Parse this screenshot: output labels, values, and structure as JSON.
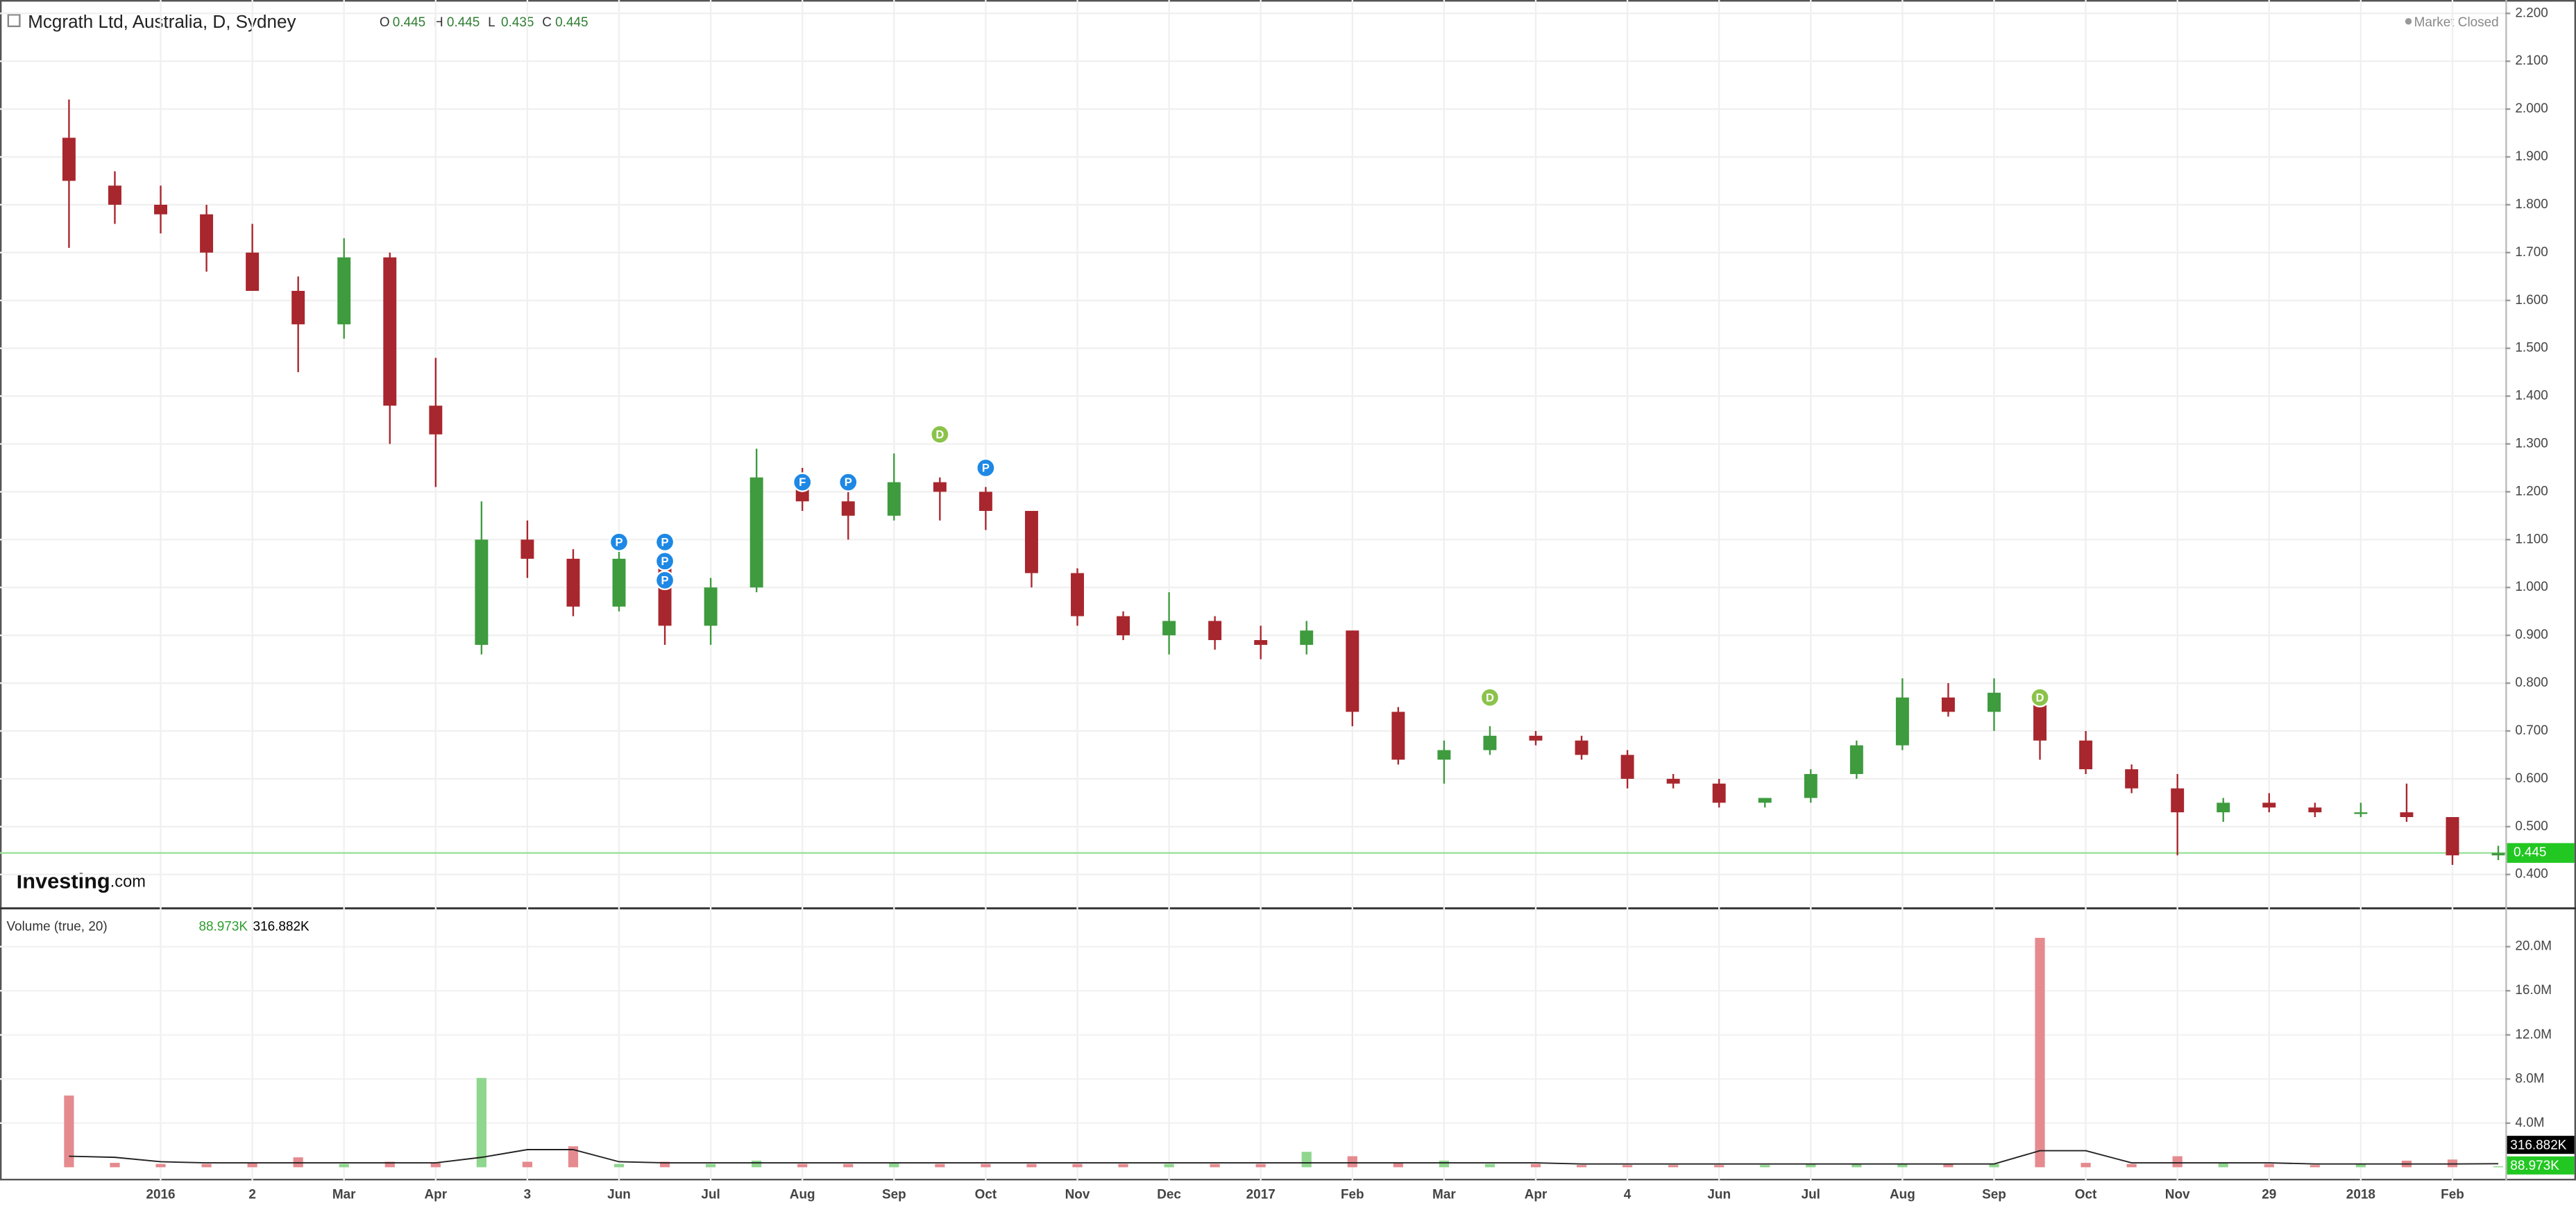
{
  "header": {
    "title": "Mcgrath Ltd, Australia, D, Sydney",
    "ohlc": [
      {
        "key": "O",
        "value": 0.445
      },
      {
        "key": "H",
        "value": 0.445
      },
      {
        "key": "L",
        "value": 0.435
      },
      {
        "key": "C",
        "value": 0.445
      }
    ],
    "market_status": "Market Closed",
    "logo": "Investing",
    "logo_suffix": ".com"
  },
  "chart_data": [
    {
      "type": "candlestick",
      "categories": [
        null,
        null,
        "2016",
        null,
        "2",
        null,
        "Mar",
        null,
        "Apr",
        null,
        "3",
        null,
        "Jun",
        null,
        "Jul",
        null,
        "Aug",
        null,
        "Sep",
        null,
        "Oct",
        null,
        "Nov",
        null,
        "Dec",
        null,
        "2017",
        null,
        "Feb",
        null,
        "Mar",
        null,
        "Apr",
        null,
        "4",
        null,
        "Jun",
        null,
        "Jul",
        null,
        "Aug",
        null,
        "Sep",
        null,
        "Oct",
        null,
        "Nov",
        null,
        "29",
        null,
        "2018",
        null,
        "Feb",
        null
      ],
      "open": [
        1.94,
        1.84,
        1.8,
        1.78,
        1.7,
        1.62,
        1.55,
        1.69,
        1.38,
        0.88,
        1.1,
        1.06,
        0.96,
        1.06,
        0.92,
        1.0,
        1.23,
        1.18,
        1.15,
        1.22,
        1.2,
        1.16,
        1.03,
        0.94,
        0.9,
        0.93,
        0.89,
        0.88,
        0.91,
        0.74,
        0.64,
        0.66,
        0.69,
        0.68,
        0.65,
        0.6,
        0.59,
        0.55,
        0.56,
        0.61,
        0.67,
        0.77,
        0.74,
        0.78,
        0.68,
        0.62,
        0.58,
        0.53,
        0.55,
        0.54,
        0.53,
        0.53,
        0.52,
        0.44
      ],
      "high": [
        2.02,
        1.87,
        1.84,
        1.8,
        1.76,
        1.65,
        1.73,
        1.7,
        1.48,
        1.18,
        1.14,
        1.08,
        1.09,
        1.07,
        1.02,
        1.29,
        1.25,
        1.2,
        1.28,
        1.23,
        1.21,
        1.16,
        1.04,
        0.95,
        0.99,
        0.94,
        0.92,
        0.93,
        0.91,
        0.75,
        0.68,
        0.71,
        0.7,
        0.69,
        0.66,
        0.61,
        0.6,
        0.56,
        0.62,
        0.68,
        0.81,
        0.8,
        0.81,
        0.78,
        0.7,
        0.63,
        0.61,
        0.56,
        0.57,
        0.55,
        0.55,
        0.59,
        0.52,
        0.46
      ],
      "low": [
        1.71,
        1.76,
        1.74,
        1.66,
        1.62,
        1.45,
        1.52,
        1.3,
        1.21,
        0.86,
        1.02,
        0.94,
        0.95,
        0.88,
        0.88,
        0.99,
        1.16,
        1.1,
        1.14,
        1.14,
        1.12,
        1.0,
        0.92,
        0.89,
        0.86,
        0.87,
        0.85,
        0.86,
        0.71,
        0.63,
        0.59,
        0.65,
        0.67,
        0.64,
        0.58,
        0.58,
        0.54,
        0.54,
        0.55,
        0.6,
        0.66,
        0.73,
        0.7,
        0.64,
        0.61,
        0.57,
        0.44,
        0.51,
        0.53,
        0.52,
        0.52,
        0.51,
        0.42,
        0.43
      ],
      "close": [
        1.85,
        1.8,
        1.78,
        1.7,
        1.62,
        1.55,
        1.69,
        1.38,
        1.32,
        1.1,
        1.06,
        0.96,
        1.06,
        0.92,
        1.0,
        1.23,
        1.18,
        1.15,
        1.22,
        1.2,
        1.16,
        1.03,
        0.94,
        0.9,
        0.93,
        0.89,
        0.88,
        0.91,
        0.74,
        0.64,
        0.66,
        0.69,
        0.68,
        0.65,
        0.6,
        0.59,
        0.55,
        0.56,
        0.61,
        0.67,
        0.77,
        0.74,
        0.78,
        0.68,
        0.62,
        0.58,
        0.53,
        0.55,
        0.54,
        0.53,
        0.53,
        0.52,
        0.44,
        0.445
      ],
      "up_color": "#3e9b3e",
      "down_color": "#a8262d",
      "ylim": [
        0.331,
        2.228
      ],
      "yticks": [
        {
          "value": 0.4,
          "label": "0.400"
        },
        {
          "value": 0.5,
          "label": "0.500"
        },
        {
          "value": 0.6,
          "label": "0.600"
        },
        {
          "value": 0.7,
          "label": "0.700"
        },
        {
          "value": 0.8,
          "label": "0.800"
        },
        {
          "value": 0.9,
          "label": "0.900"
        },
        {
          "value": 1.0,
          "label": "1.000"
        },
        {
          "value": 1.1,
          "label": "1.100"
        },
        {
          "value": 1.2,
          "label": "1.200"
        },
        {
          "value": 1.3,
          "label": "1.300"
        },
        {
          "value": 1.4,
          "label": "1.400"
        },
        {
          "value": 1.5,
          "label": "1.500"
        },
        {
          "value": 1.6,
          "label": "1.600"
        },
        {
          "value": 1.7,
          "label": "1.700"
        },
        {
          "value": 1.8,
          "label": "1.800"
        },
        {
          "value": 1.9,
          "label": "1.900"
        },
        {
          "value": 2.0,
          "label": "2.000"
        },
        {
          "value": 2.1,
          "label": "2.100"
        },
        {
          "value": 2.2,
          "label": "2.200"
        }
      ],
      "last_value": 0.445,
      "last_color": "#22c722",
      "grid": true,
      "annotations": [
        {
          "label": "P",
          "index": 12,
          "price": 1.095,
          "color": "#1e88e5"
        },
        {
          "label": "P",
          "index": 13,
          "price": 1.095,
          "color": "#1e88e5"
        },
        {
          "label": "P",
          "index": 13,
          "price": 1.055,
          "color": "#1e88e5"
        },
        {
          "label": "P",
          "index": 13,
          "price": 1.015,
          "color": "#1e88e5"
        },
        {
          "label": "F",
          "index": 16,
          "price": 1.22,
          "color": "#1e88e5"
        },
        {
          "label": "P",
          "index": 17,
          "price": 1.22,
          "color": "#1e88e5"
        },
        {
          "label": "D",
          "index": 19,
          "price": 1.32,
          "color": "#8bc34a"
        },
        {
          "label": "P",
          "index": 20,
          "price": 1.25,
          "color": "#1e88e5"
        },
        {
          "label": "D",
          "index": 31,
          "price": 0.77,
          "color": "#8bc34a"
        },
        {
          "label": "D",
          "index": 43,
          "price": 0.77,
          "color": "#8bc34a"
        }
      ]
    },
    {
      "type": "bar",
      "title": "Volume (true, 20)",
      "series": [
        {
          "name": "Volume",
          "up_color": "#8fd68f",
          "down_color": "#e58a8f",
          "values": [
            6.5,
            0.4,
            0.3,
            0.3,
            0.4,
            0.9,
            0.3,
            0.5,
            0.4,
            8.1,
            0.5,
            1.9,
            0.3,
            0.5,
            0.3,
            0.6,
            0.3,
            0.3,
            0.4,
            0.3,
            0.3,
            0.3,
            0.3,
            0.3,
            0.3,
            0.3,
            0.3,
            1.4,
            1.0,
            0.4,
            0.6,
            0.3,
            0.3,
            0.2,
            0.2,
            0.2,
            0.2,
            0.2,
            0.3,
            0.3,
            0.3,
            0.3,
            0.3,
            20.8,
            0.4,
            0.3,
            1.0,
            0.4,
            0.3,
            0.2,
            0.3,
            0.6,
            0.7,
            0.09
          ]
        },
        {
          "name": "MA",
          "color": "#222222",
          "values": [
            1.0,
            0.9,
            0.5,
            0.4,
            0.4,
            0.4,
            0.4,
            0.4,
            0.4,
            0.9,
            1.6,
            1.6,
            0.5,
            0.4,
            0.4,
            0.4,
            0.4,
            0.4,
            0.4,
            0.4,
            0.4,
            0.4,
            0.4,
            0.4,
            0.4,
            0.4,
            0.4,
            0.4,
            0.4,
            0.4,
            0.4,
            0.4,
            0.4,
            0.3,
            0.3,
            0.3,
            0.3,
            0.3,
            0.3,
            0.3,
            0.3,
            0.3,
            0.3,
            1.5,
            1.5,
            0.4,
            0.4,
            0.4,
            0.4,
            0.3,
            0.3,
            0.3,
            0.3,
            0.32
          ]
        }
      ],
      "last_values": [
        {
          "value": 0.088973,
          "label": "88.973K",
          "color": "#22c722"
        },
        {
          "value": 0.316882,
          "label": "316.882K",
          "color": "#000000"
        }
      ],
      "ylim": [
        0,
        23.4
      ],
      "yticks": [
        {
          "value": 4,
          "label": "4.0M"
        },
        {
          "value": 8,
          "label": "8.0M"
        },
        {
          "value": 12,
          "label": "12.0M"
        },
        {
          "value": 16,
          "label": "16.0M"
        },
        {
          "value": 20,
          "label": "20.0M"
        }
      ]
    }
  ]
}
